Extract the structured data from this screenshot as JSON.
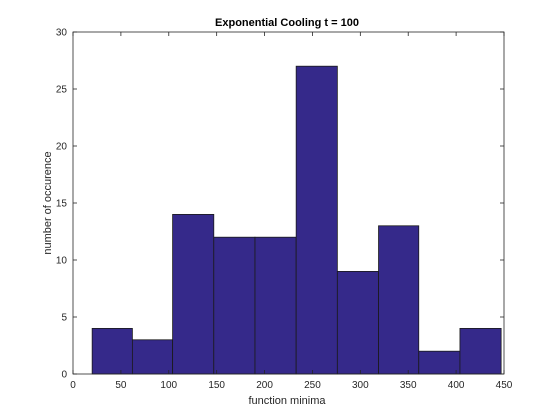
{
  "chart_data": {
    "type": "bar",
    "histogram": true,
    "title": "Exponential Cooling t = 100",
    "xlabel": "function minima",
    "ylabel": "number of occurence",
    "xlim": [
      0,
      450
    ],
    "ylim": [
      0,
      30
    ],
    "xticks": [
      0,
      50,
      100,
      150,
      200,
      250,
      300,
      350,
      400,
      450
    ],
    "yticks": [
      0,
      5,
      10,
      15,
      20,
      25,
      30
    ],
    "bin_edges": [
      20,
      62,
      104,
      147,
      190,
      233,
      276,
      319,
      361,
      404,
      447
    ],
    "values": [
      4,
      3,
      14,
      12,
      12,
      27,
      9,
      13,
      2,
      4
    ],
    "bar_color": "#35298a",
    "edge_color": "#1a1a1a",
    "grid": false,
    "box": true
  }
}
